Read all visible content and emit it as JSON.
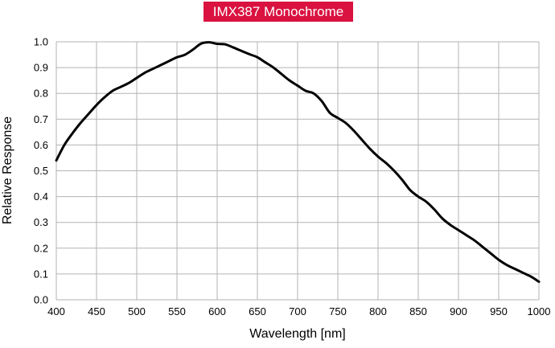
{
  "colors": {
    "title_bg": "#d9123f",
    "title_text": "#ffffff",
    "grid": "#b3b3b3",
    "curve": "#000000",
    "text": "#000000"
  },
  "chart_data": {
    "type": "line",
    "title": "IMX387 Monochrome",
    "xlabel": "Wavelength [nm]",
    "ylabel": "Relative Response",
    "xlim": [
      400,
      1000
    ],
    "ylim": [
      0,
      1.0
    ],
    "x_ticks": [
      "400",
      "450",
      "500",
      "550",
      "600",
      "650",
      "700",
      "750",
      "800",
      "850",
      "900",
      "950",
      "1000"
    ],
    "y_ticks": [
      "0.0",
      "0.1",
      "0.2",
      "0.3",
      "0.4",
      "0.5",
      "0.6",
      "0.7",
      "0.8",
      "0.9",
      "1.0"
    ],
    "grid": true,
    "legend": "none",
    "series": [
      {
        "x": [
          400,
          410,
          420,
          430,
          440,
          450,
          460,
          470,
          480,
          490,
          500,
          510,
          520,
          530,
          540,
          550,
          560,
          570,
          580,
          590,
          600,
          610,
          620,
          630,
          640,
          650,
          660,
          670,
          680,
          690,
          700,
          710,
          720,
          730,
          740,
          750,
          760,
          770,
          780,
          790,
          800,
          810,
          820,
          830,
          840,
          850,
          860,
          870,
          880,
          890,
          900,
          910,
          920,
          930,
          940,
          950,
          960,
          970,
          980,
          990,
          1000
        ],
        "y": [
          0.54,
          0.6,
          0.645,
          0.685,
          0.72,
          0.755,
          0.785,
          0.81,
          0.825,
          0.84,
          0.86,
          0.88,
          0.895,
          0.91,
          0.925,
          0.94,
          0.95,
          0.97,
          0.993,
          0.998,
          0.992,
          0.99,
          0.978,
          0.965,
          0.952,
          0.94,
          0.92,
          0.9,
          0.875,
          0.85,
          0.83,
          0.81,
          0.8,
          0.77,
          0.725,
          0.705,
          0.685,
          0.655,
          0.62,
          0.585,
          0.555,
          0.53,
          0.5,
          0.465,
          0.425,
          0.4,
          0.38,
          0.35,
          0.315,
          0.29,
          0.27,
          0.25,
          0.23,
          0.205,
          0.18,
          0.155,
          0.135,
          0.12,
          0.105,
          0.09,
          0.07
        ]
      }
    ]
  }
}
